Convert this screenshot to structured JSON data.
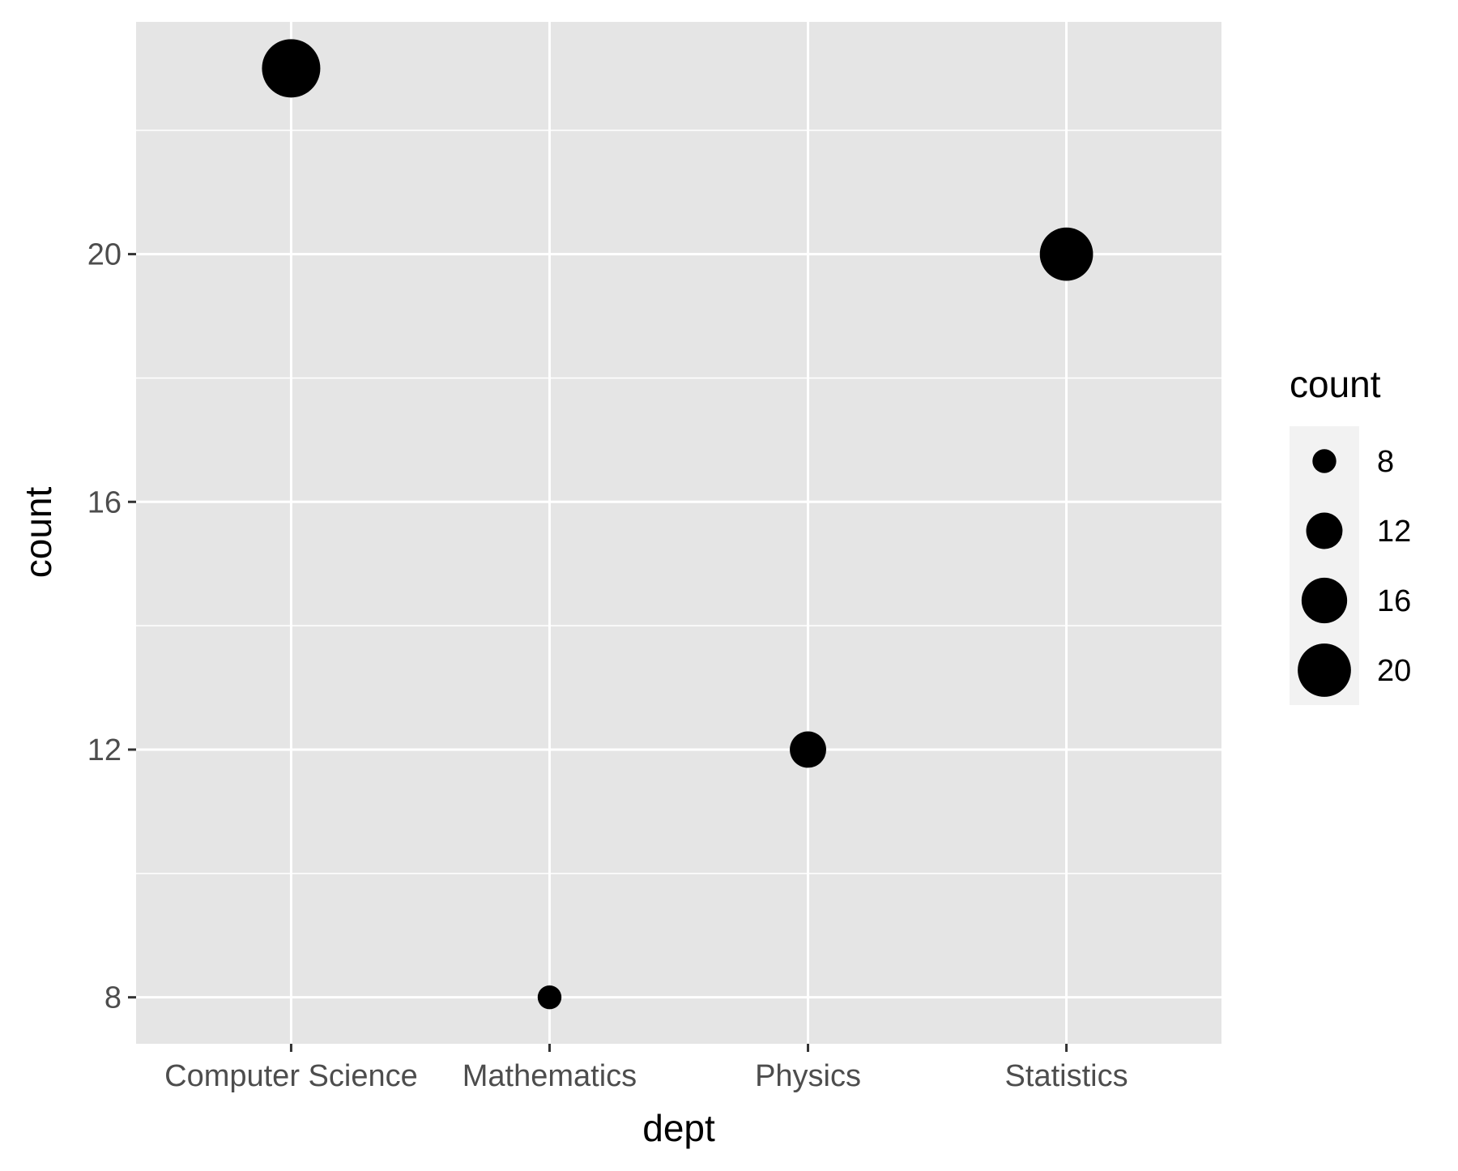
{
  "chart_data": {
    "type": "scatter",
    "title": "",
    "xlabel": "dept",
    "ylabel": "count",
    "categories": [
      "Computer Science",
      "Mathematics",
      "Physics",
      "Statistics"
    ],
    "values": [
      23,
      8,
      12,
      20
    ],
    "y_ticks": [
      8,
      12,
      16,
      20
    ],
    "y_tick_labels": [
      "8",
      "12",
      "16",
      "20"
    ],
    "ylim": [
      7.25,
      23.75
    ],
    "size_scale_range": [
      8,
      23
    ],
    "grid": true,
    "legend": {
      "title": "count",
      "position": "right",
      "entries": [
        {
          "value": 8,
          "label": "8"
        },
        {
          "value": 12,
          "label": "12"
        },
        {
          "value": 16,
          "label": "16"
        },
        {
          "value": 20,
          "label": "20"
        }
      ]
    },
    "colors": {
      "panel": "#e5e5e5",
      "grid": "#ffffff",
      "point": "#000000",
      "legend_key": "#f2f2f2",
      "tick": "#333333",
      "tick_text": "#4d4d4d"
    }
  }
}
